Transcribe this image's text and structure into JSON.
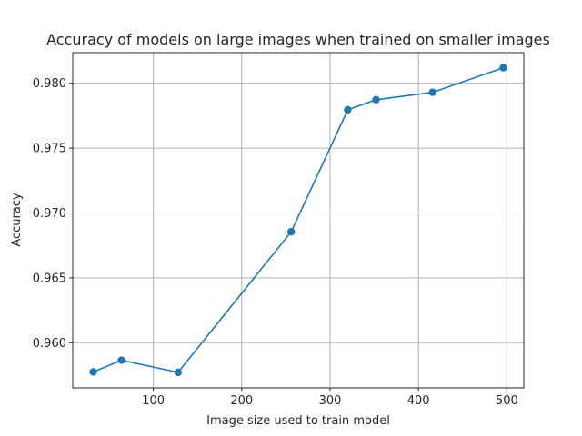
{
  "chart_data": {
    "type": "line",
    "title": "Accuracy of models on large images when trained on smaller images",
    "xlabel": "Image size used to train model",
    "ylabel": "Accuracy",
    "x": [
      32,
      64,
      128,
      256,
      320,
      352,
      416,
      496
    ],
    "series": [
      {
        "values": [
          0.95775,
          0.95865,
          0.95772,
          0.96855,
          0.97795,
          0.97873,
          0.9793,
          0.9812
        ]
      }
    ],
    "xlim": [
      8.8,
      519.2
    ],
    "ylim": [
      0.95652,
      0.98236
    ],
    "xticks": [
      100,
      200,
      300,
      400,
      500
    ],
    "yticks": [
      0.96,
      0.965,
      0.97,
      0.975,
      0.98
    ],
    "xtick_labels": [
      "100",
      "200",
      "300",
      "400",
      "500"
    ],
    "ytick_labels": [
      "0.960",
      "0.965",
      "0.970",
      "0.975",
      "0.980"
    ],
    "grid": true,
    "colors": {
      "line": "#1f77b4",
      "grid": "#b0b0b0",
      "frame": "#262626"
    }
  }
}
